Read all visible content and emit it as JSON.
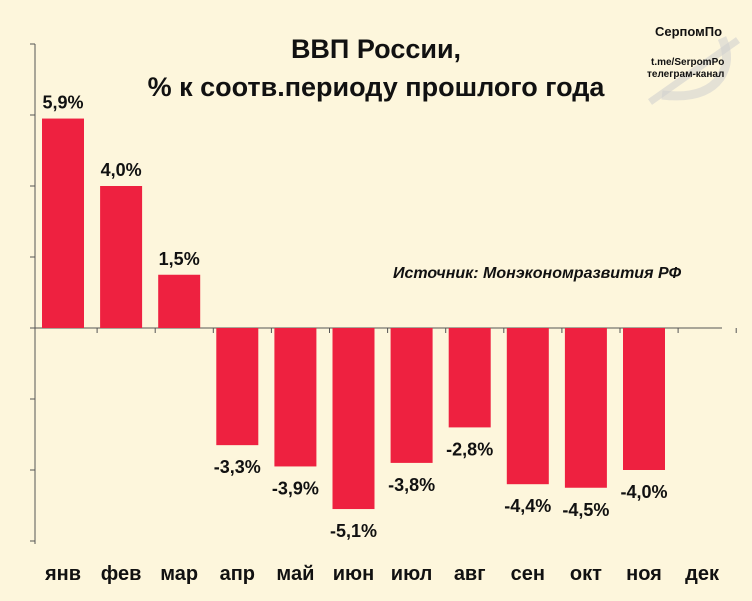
{
  "chart_data": {
    "type": "bar",
    "title_line1": "ВВП России,",
    "title_line2": "% к соотв.периоду прошлого года",
    "categories": [
      "янв",
      "фев",
      "мар",
      "апр",
      "май",
      "июн",
      "июл",
      "авг",
      "сен",
      "окт",
      "ноя",
      "дек"
    ],
    "values": [
      5.9,
      4.0,
      1.5,
      -3.3,
      -3.9,
      -5.1,
      -3.8,
      -2.8,
      -4.4,
      -4.5,
      -4.0,
      null
    ],
    "value_labels": [
      "5,9%",
      "4,0%",
      "1,5%",
      "-3,3%",
      "-3,9%",
      "-5,1%",
      "-3,8%",
      "-2,8%",
      "-4,4%",
      "-4,5%",
      "-4,0%",
      ""
    ],
    "annotation": "Источник: Монэкономразвития РФ",
    "ylim": [
      -6,
      8
    ],
    "grid": false
  },
  "watermark": {
    "name": "СерпомПо",
    "link": "t.me/SerpomPo",
    "caption": "телеграм-канал"
  },
  "colors": {
    "bar": "#ee2140",
    "background": "#fdf6dc",
    "axis": "#555555"
  }
}
